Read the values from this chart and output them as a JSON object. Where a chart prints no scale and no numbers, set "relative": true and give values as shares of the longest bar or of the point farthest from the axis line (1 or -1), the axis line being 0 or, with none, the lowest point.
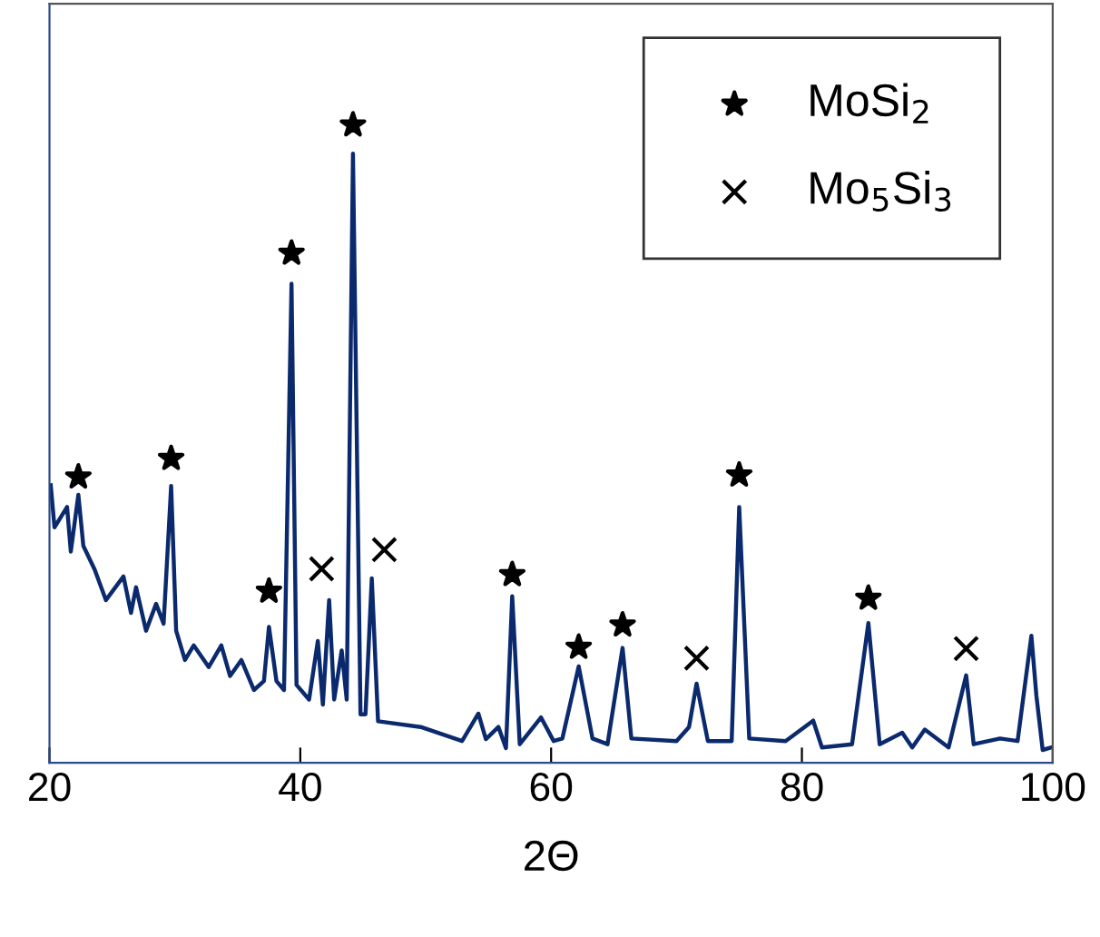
{
  "chart_data": {
    "type": "line",
    "xlabel": "2Θ",
    "relative": true,
    "xlim": [
      20,
      100
    ],
    "xticks": [
      20,
      40,
      60,
      80,
      100
    ],
    "grid": false,
    "legend": "top right",
    "tick_labels": "x",
    "series": [
      {
        "color": "#0b2a6e",
        "marker": "none",
        "line_style": "solid",
        "x": [
          20.1,
          20.4,
          21.4,
          21.7,
          22.3,
          22.7,
          23.6,
          24.5,
          25.9,
          26.5,
          26.9,
          27.7,
          28.5,
          29.1,
          29.7,
          30.1,
          30.8,
          31.5,
          32.7,
          33.7,
          34.4,
          35.3,
          36.3,
          37.1,
          37.5,
          38.1,
          38.7,
          39.3,
          39.7,
          40.7,
          41.4,
          41.8,
          42.3,
          42.7,
          43.3,
          43.7,
          44.2,
          44.8,
          45.2,
          45.7,
          46.2,
          49.6,
          52.9,
          54.2,
          54.8,
          55.8,
          56.4,
          56.9,
          57.5,
          59.2,
          60.2,
          60.9,
          62.2,
          63.3,
          64.5,
          65.7,
          66.4,
          70.0,
          71.0,
          71.6,
          72.5,
          74.4,
          75.0,
          75.8,
          78.7,
          80.9,
          81.6,
          84.0,
          85.3,
          86.2,
          88.0,
          88.8,
          89.8,
          91.7,
          93.1,
          93.7,
          95.8,
          97.2,
          98.3,
          98.7,
          99.2,
          99.9
        ],
        "values": [
          0.435,
          0.369,
          0.401,
          0.331,
          0.42,
          0.34,
          0.303,
          0.255,
          0.292,
          0.235,
          0.275,
          0.207,
          0.249,
          0.218,
          0.434,
          0.207,
          0.161,
          0.184,
          0.15,
          0.184,
          0.136,
          0.161,
          0.114,
          0.128,
          0.213,
          0.128,
          0.114,
          0.751,
          0.122,
          0.099,
          0.191,
          0.091,
          0.255,
          0.099,
          0.176,
          0.099,
          0.955,
          0.076,
          0.076,
          0.289,
          0.065,
          0.056,
          0.034,
          0.077,
          0.037,
          0.056,
          0.023,
          0.261,
          0.029,
          0.071,
          0.034,
          0.038,
          0.151,
          0.038,
          0.029,
          0.18,
          0.038,
          0.034,
          0.056,
          0.124,
          0.034,
          0.034,
          0.401,
          0.038,
          0.034,
          0.066,
          0.024,
          0.029,
          0.219,
          0.029,
          0.047,
          0.024,
          0.052,
          0.024,
          0.137,
          0.029,
          0.038,
          0.034,
          0.199,
          0.105,
          0.02,
          0.024
        ]
      },
      {
        "type": "scatter",
        "name": "MoSi$_{2}$",
        "color": "#000000",
        "marker": "star",
        "x": [
          22.3,
          29.7,
          37.5,
          39.3,
          44.2,
          56.9,
          62.2,
          65.7,
          75.0,
          85.3
        ],
        "values": [
          0.448,
          0.477,
          0.269,
          0.799,
          1.0,
          0.295,
          0.181,
          0.216,
          0.451,
          0.258
        ]
      },
      {
        "type": "scatter",
        "name": "Mo$_{5}$Si$_{3}$",
        "color": "#000000",
        "marker": "cross",
        "x": [
          41.7,
          46.7,
          71.6,
          93.1
        ],
        "values": [
          0.304,
          0.334,
          0.164,
          0.179
        ]
      }
    ]
  }
}
